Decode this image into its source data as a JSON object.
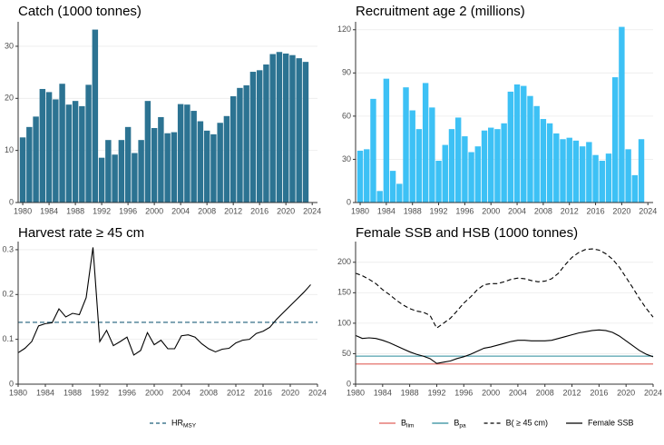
{
  "chart_data": [
    {
      "type": "bar",
      "title": "Catch (1000 tonnes)",
      "color": "#2c7392",
      "x": [
        1980,
        1981,
        1982,
        1983,
        1984,
        1985,
        1986,
        1987,
        1988,
        1989,
        1990,
        1991,
        1992,
        1993,
        1994,
        1995,
        1996,
        1997,
        1998,
        1999,
        2000,
        2001,
        2002,
        2003,
        2004,
        2005,
        2006,
        2007,
        2008,
        2009,
        2010,
        2011,
        2012,
        2013,
        2014,
        2015,
        2016,
        2017,
        2018,
        2019,
        2020,
        2021,
        2022,
        2023
      ],
      "values": [
        12.5,
        14.5,
        16.5,
        21.8,
        21.2,
        19.8,
        22.8,
        18.8,
        19.5,
        18.5,
        22.6,
        33.2,
        8.6,
        12,
        9.2,
        12,
        14.5,
        9.5,
        12,
        19.5,
        14.3,
        16.4,
        13.3,
        13.5,
        18.9,
        18.8,
        17.6,
        15.6,
        13.8,
        13.1,
        15.3,
        16.6,
        20.4,
        22,
        22.5,
        25.1,
        25.4,
        26.5,
        28.5,
        28.9,
        28.6,
        28.3,
        27.7,
        27
      ],
      "xlim": [
        1979.3,
        2024.8
      ],
      "xticks": [
        1980,
        1984,
        1988,
        1992,
        1996,
        2000,
        2004,
        2008,
        2012,
        2016,
        2020,
        2024
      ],
      "ylim": [
        0,
        34
      ],
      "yticks": [
        0,
        10,
        20,
        30
      ],
      "grid": true
    },
    {
      "type": "bar",
      "title": "Recruitment age 2 (millions)",
      "color": "#3dc1f5",
      "x": [
        1980,
        1981,
        1982,
        1983,
        1984,
        1985,
        1986,
        1987,
        1988,
        1989,
        1990,
        1991,
        1992,
        1993,
        1994,
        1995,
        1996,
        1997,
        1998,
        1999,
        2000,
        2001,
        2002,
        2003,
        2004,
        2005,
        2006,
        2007,
        2008,
        2009,
        2010,
        2011,
        2012,
        2013,
        2014,
        2015,
        2016,
        2017,
        2018,
        2019,
        2020,
        2021,
        2022,
        2023
      ],
      "values": [
        36,
        37,
        72,
        8,
        86,
        22,
        13,
        80,
        64,
        51,
        83,
        66,
        29,
        40,
        51,
        59,
        46,
        35,
        39,
        50,
        52,
        51,
        55,
        77,
        82,
        81,
        74,
        67,
        58,
        55,
        48,
        44,
        45,
        43,
        39,
        42,
        33,
        29,
        34,
        87,
        122,
        37,
        19,
        44
      ],
      "xlim": [
        1979.3,
        2024.8
      ],
      "xticks": [
        1980,
        1984,
        1988,
        1992,
        1996,
        2000,
        2004,
        2008,
        2012,
        2016,
        2020,
        2024
      ],
      "ylim": [
        0,
        123
      ],
      "yticks": [
        0,
        30,
        60,
        90,
        120
      ],
      "grid": true
    },
    {
      "type": "line",
      "title": "Harvest rate  ≥ 45 cm",
      "x": [
        1980,
        1981,
        1982,
        1983,
        1984,
        1985,
        1986,
        1987,
        1988,
        1989,
        1990,
        1991,
        1992,
        1993,
        1994,
        1995,
        1996,
        1997,
        1998,
        1999,
        2000,
        2001,
        2002,
        2003,
        2004,
        2005,
        2006,
        2007,
        2008,
        2009,
        2010,
        2011,
        2012,
        2013,
        2014,
        2015,
        2016,
        2017,
        2018,
        2019,
        2020,
        2021,
        2022,
        2023
      ],
      "series": [
        {
          "color": "#000000",
          "dash": false,
          "values": [
            0.07,
            0.08,
            0.095,
            0.13,
            0.135,
            0.137,
            0.168,
            0.15,
            0.158,
            0.155,
            0.193,
            0.305,
            0.095,
            0.12,
            0.086,
            0.095,
            0.105,
            0.065,
            0.075,
            0.115,
            0.088,
            0.098,
            0.079,
            0.079,
            0.108,
            0.11,
            0.105,
            0.09,
            0.079,
            0.072,
            0.078,
            0.08,
            0.092,
            0.098,
            0.1,
            0.113,
            0.118,
            0.127,
            0.145,
            0.16,
            0.175,
            0.19,
            0.205,
            0.222
          ]
        }
      ],
      "reference_lines": [
        {
          "name": "HR",
          "name_sub": "MSY",
          "value": 0.138,
          "color": "#1f5f7a",
          "dash": true
        }
      ],
      "xlim": [
        1980,
        2024
      ],
      "xticks": [
        1980,
        1984,
        1988,
        1992,
        1996,
        2000,
        2004,
        2008,
        2012,
        2016,
        2020,
        2024
      ],
      "ylim": [
        0,
        0.31
      ],
      "yticks": [
        0,
        0.1,
        0.2,
        0.3
      ],
      "grid": true
    },
    {
      "type": "line",
      "title": "Female SSB and HSB (1000 tonnes)",
      "x": [
        1980,
        1981,
        1982,
        1983,
        1984,
        1985,
        1986,
        1987,
        1988,
        1989,
        1990,
        1991,
        1992,
        1993,
        1994,
        1995,
        1996,
        1997,
        1998,
        1999,
        2000,
        2001,
        2002,
        2003,
        2004,
        2005,
        2006,
        2007,
        2008,
        2009,
        2010,
        2011,
        2012,
        2013,
        2014,
        2015,
        2016,
        2017,
        2018,
        2019,
        2020,
        2021,
        2022,
        2023,
        2024
      ],
      "reference_lines": [
        {
          "name": "B",
          "name_sub": "lim",
          "value": 33,
          "color": "#e0605a",
          "dash": false
        },
        {
          "name": "B",
          "name_sub": "pa",
          "value": 46,
          "color": "#2a8a9a",
          "dash": false
        }
      ],
      "series": [
        {
          "name": "B( ≥ 45 cm)",
          "color": "#000000",
          "dash": true,
          "values": [
            182,
            178,
            172,
            165,
            155,
            147,
            138,
            130,
            124,
            120,
            118,
            113,
            92,
            100,
            108,
            120,
            133,
            143,
            155,
            163,
            165,
            165,
            168,
            172,
            174,
            173,
            170,
            168,
            169,
            173,
            182,
            196,
            208,
            216,
            221,
            222,
            220,
            214,
            205,
            192,
            175,
            158,
            140,
            124,
            110
          ]
        },
        {
          "name": "Female SSB",
          "color": "#000000",
          "dash": false,
          "values": [
            80,
            75,
            76,
            75,
            72,
            68,
            63,
            58,
            53,
            49,
            46,
            42,
            34,
            36,
            38,
            42,
            45,
            49,
            54,
            59,
            61,
            64,
            67,
            70,
            72,
            72,
            71,
            71,
            71,
            72,
            75,
            78,
            81,
            84,
            86,
            88,
            89,
            88,
            85,
            79,
            71,
            63,
            55,
            49,
            45
          ]
        }
      ],
      "xlim": [
        1980,
        2024
      ],
      "xticks": [
        1980,
        1984,
        1988,
        1992,
        1996,
        2000,
        2004,
        2008,
        2012,
        2016,
        2020,
        2024
      ],
      "ylim": [
        0,
        228
      ],
      "yticks": [
        0,
        50,
        100,
        150,
        200
      ],
      "grid": true
    }
  ]
}
